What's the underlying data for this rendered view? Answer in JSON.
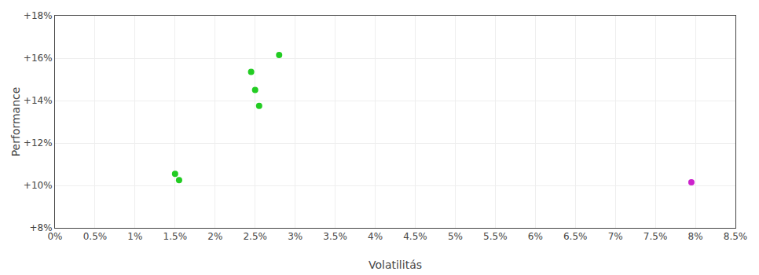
{
  "chart_data": {
    "type": "scatter",
    "xlabel": "Volatilitás",
    "ylabel": "Performance",
    "series": [
      {
        "color": "#22cc22",
        "x": [
          1.5,
          1.55,
          2.45,
          2.5,
          2.55,
          2.8
        ],
        "values": [
          10.55,
          10.25,
          15.35,
          14.5,
          13.75,
          16.15
        ]
      },
      {
        "color": "#cc22cc",
        "x": [
          7.95
        ],
        "values": [
          10.15
        ]
      }
    ],
    "xlim": [
      0.0,
      8.5
    ],
    "ylim": [
      8,
      18
    ],
    "xticks": [
      {
        "value": 0.0,
        "label": "0%"
      },
      {
        "value": 0.5,
        "label": "0.5%"
      },
      {
        "value": 1.0,
        "label": "1%"
      },
      {
        "value": 1.5,
        "label": "1.5%"
      },
      {
        "value": 2.0,
        "label": "2%"
      },
      {
        "value": 2.5,
        "label": "2.5%"
      },
      {
        "value": 3.0,
        "label": "3%"
      },
      {
        "value": 3.5,
        "label": "3.5%"
      },
      {
        "value": 4.0,
        "label": "4%"
      },
      {
        "value": 4.5,
        "label": "4.5%"
      },
      {
        "value": 5.0,
        "label": "5%"
      },
      {
        "value": 5.5,
        "label": "5.5%"
      },
      {
        "value": 6.0,
        "label": "6%"
      },
      {
        "value": 6.5,
        "label": "6.5%"
      },
      {
        "value": 7.0,
        "label": "7%"
      },
      {
        "value": 7.5,
        "label": "7.5%"
      },
      {
        "value": 8.0,
        "label": "8%"
      },
      {
        "value": 8.5,
        "label": "8.5%"
      }
    ],
    "yticks": [
      {
        "value": 8,
        "label": "+8%"
      },
      {
        "value": 10,
        "label": "+10%"
      },
      {
        "value": 12,
        "label": "+12%"
      },
      {
        "value": 14,
        "label": "+14%"
      },
      {
        "value": 16,
        "label": "+16%"
      },
      {
        "value": 18,
        "label": "+18%"
      }
    ],
    "grid": true
  }
}
